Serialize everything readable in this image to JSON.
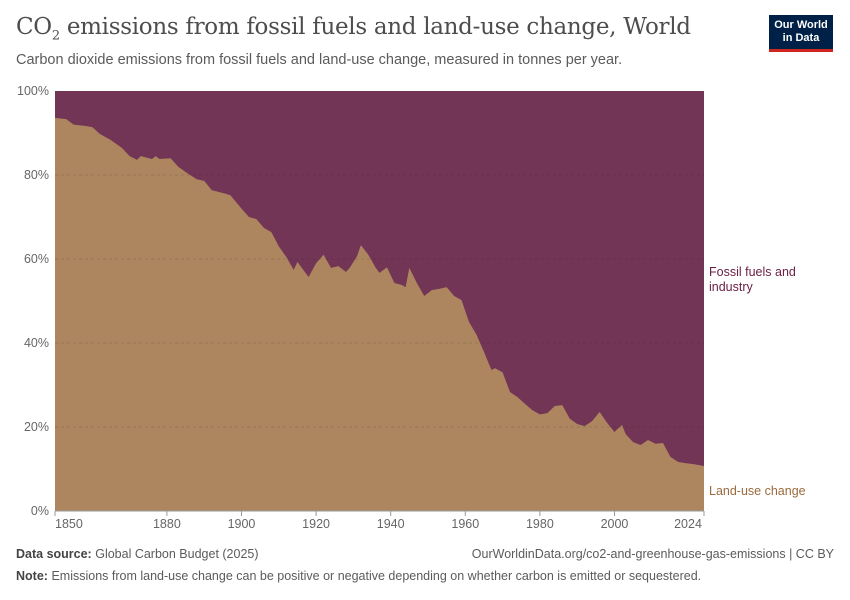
{
  "header": {
    "title_main": "CO",
    "title_sub": "2",
    "title_rest": " emissions from fossil fuels and land-use change, World",
    "subtitle": "Carbon dioxide emissions from fossil fuels and land-use change, measured in tonnes per year.",
    "logo": "Our World in Data"
  },
  "footer": {
    "source_label": "Data source:",
    "source": "Global Carbon Budget (2025)",
    "url": "OurWorldinData.org/co2-and-greenhouse-gas-emissions | CC BY",
    "note_label": "Note:",
    "note": "Emissions from land-use change can be positive or negative depending on whether carbon is emitted or sequestered."
  },
  "chart_data": {
    "type": "area",
    "stacked": "percent",
    "title": "CO₂ emissions from fossil fuels and land-use change, World",
    "xlim": [
      1850,
      2024
    ],
    "ylim": [
      0,
      100
    ],
    "x_ticks": [
      "1850",
      "1880",
      "1900",
      "1920",
      "1940",
      "1960",
      "1980",
      "2000",
      "2024"
    ],
    "y_ticks": [
      "0%",
      "20%",
      "40%",
      "60%",
      "80%",
      "100%"
    ],
    "grid": "horizontal dashed",
    "legend": "right (inline labels)",
    "colors": {
      "Land-use change": "#ad8660",
      "Fossil fuels and industry": "#733555"
    },
    "series": [
      {
        "name": "Land-use change",
        "x": [
          1850,
          1853,
          1855,
          1858,
          1860,
          1862,
          1865,
          1868,
          1870,
          1872,
          1873,
          1876,
          1877,
          1878,
          1881,
          1883,
          1885,
          1888,
          1890,
          1892,
          1895,
          1897,
          1900,
          1902,
          1904,
          1906,
          1908,
          1910,
          1912,
          1914,
          1915,
          1917,
          1918,
          1920,
          1922,
          1924,
          1926,
          1928,
          1929,
          1931,
          1932,
          1934,
          1936,
          1937,
          1939,
          1941,
          1943,
          1944,
          1945,
          1947,
          1949,
          1951,
          1953,
          1955,
          1957,
          1959,
          1961,
          1963,
          1965,
          1967,
          1968,
          1970,
          1972,
          1974,
          1976,
          1978,
          1980,
          1982,
          1984,
          1986,
          1988,
          1990,
          1992,
          1994,
          1996,
          1998,
          2000,
          2002,
          2003,
          2005,
          2007,
          2009,
          2011,
          2013,
          2015,
          2017,
          2019,
          2021,
          2024
        ],
        "values": [
          93.6,
          93.3,
          92,
          91.7,
          91.4,
          89.8,
          88.3,
          86.4,
          84.5,
          83.6,
          84.5,
          83.8,
          84.5,
          83.8,
          84,
          82,
          80.7,
          79,
          78.6,
          76.4,
          75.7,
          75.2,
          72,
          70,
          69.5,
          67.4,
          66.4,
          63,
          60.5,
          57.4,
          59.3,
          56.9,
          55.7,
          59,
          61,
          57.9,
          58.3,
          56.9,
          57.9,
          60.7,
          63.3,
          61,
          57.9,
          56.7,
          58,
          54.3,
          53.8,
          53.3,
          57.9,
          54.3,
          51.2,
          52.6,
          52.9,
          53.3,
          51.2,
          50.2,
          45,
          42,
          37.9,
          33.6,
          34,
          33,
          28.3,
          27.1,
          25.5,
          24,
          23,
          23.3,
          25,
          25.2,
          22,
          20.7,
          20.2,
          21.4,
          23.6,
          21,
          18.8,
          20.5,
          18.3,
          16.4,
          15.7,
          16.9,
          16,
          16.2,
          12.9,
          11.7,
          11.4,
          11.2,
          10.7
        ]
      },
      {
        "name": "Fossil fuels and industry",
        "values": "remainder to 100%"
      }
    ],
    "labels": {
      "fossil": "Fossil fuels and industry",
      "land": "Land-use change"
    }
  }
}
